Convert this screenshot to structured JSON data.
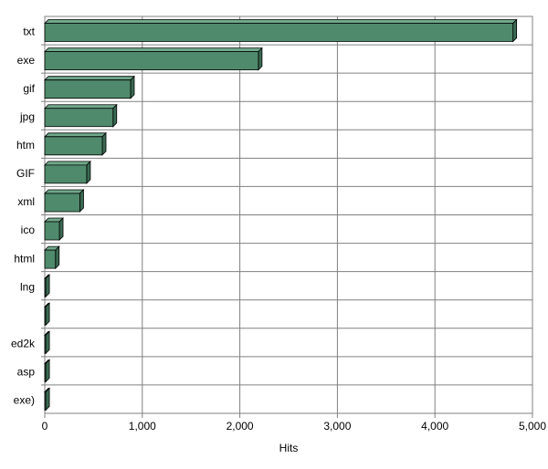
{
  "chart_data": {
    "type": "bar",
    "orientation": "horizontal",
    "x_label": "Hits",
    "categories": [
      "txt",
      "exe",
      "gif",
      "jpg",
      "htm",
      "GIF",
      "xml",
      "ico",
      "html",
      "lng",
      null,
      "ed2k",
      "asp",
      "exe)"
    ],
    "values": [
      4800,
      2190,
      880,
      700,
      590,
      430,
      360,
      150,
      110,
      10,
      10,
      10,
      10,
      10
    ],
    "color": "#4f8a6c",
    "xlim": [
      0,
      5000
    ],
    "xticks": [
      0,
      {
        "value": 1000,
        "label": "1,000"
      },
      {
        "value": 2000,
        "label": "2,000"
      },
      {
        "value": 3000,
        "label": "3,000"
      },
      {
        "value": 4000,
        "label": "4,000"
      },
      {
        "value": 5000,
        "label": "5,000"
      }
    ],
    "grid": true
  }
}
